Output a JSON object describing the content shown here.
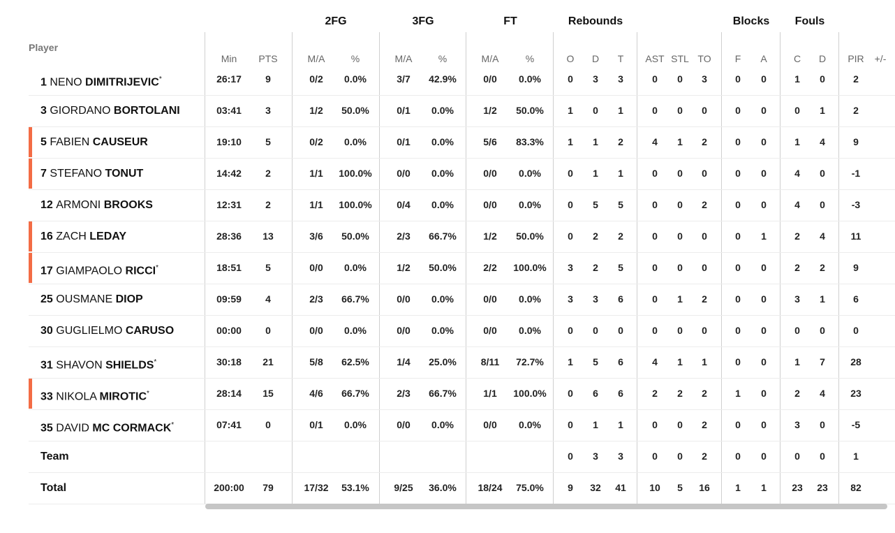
{
  "groups": [
    {
      "label": "2FG",
      "x": 481
    },
    {
      "label": "3FG",
      "x": 606
    },
    {
      "label": "FT",
      "x": 731
    },
    {
      "label": "Rebounds",
      "x": 853
    },
    {
      "label": "Blocks",
      "x": 1076
    },
    {
      "label": "Fouls",
      "x": 1160
    }
  ],
  "player_header": "Player",
  "columns": [
    {
      "key": "min",
      "label": "Min"
    },
    {
      "key": "pts",
      "label": "PTS"
    },
    {
      "key": "fg2",
      "label": "M/A"
    },
    {
      "key": "fg2p",
      "label": "%"
    },
    {
      "key": "fg3",
      "label": "M/A"
    },
    {
      "key": "fg3p",
      "label": "%"
    },
    {
      "key": "ft",
      "label": "M/A"
    },
    {
      "key": "ftp",
      "label": "%"
    },
    {
      "key": "o",
      "label": "O"
    },
    {
      "key": "d",
      "label": "D"
    },
    {
      "key": "t",
      "label": "T"
    },
    {
      "key": "ast",
      "label": "AST"
    },
    {
      "key": "stl",
      "label": "STL"
    },
    {
      "key": "to",
      "label": "TO"
    },
    {
      "key": "bf",
      "label": "F"
    },
    {
      "key": "ba",
      "label": "A"
    },
    {
      "key": "fc",
      "label": "C"
    },
    {
      "key": "fd",
      "label": "D"
    },
    {
      "key": "pir",
      "label": "PIR"
    },
    {
      "key": "pm",
      "label": "+/-"
    }
  ],
  "rows": [
    {
      "num": "1",
      "first": "NENO",
      "last": "DIMITRIJEVIC",
      "star": "*",
      "bar": false,
      "stats": [
        "26:17",
        "9",
        "0/2",
        "0.0%",
        "3/7",
        "42.9%",
        "0/0",
        "0.0%",
        "0",
        "3",
        "3",
        "0",
        "0",
        "3",
        "0",
        "0",
        "1",
        "0",
        "2",
        ""
      ]
    },
    {
      "num": "3",
      "first": "GIORDANO",
      "last": "BORTOLANI",
      "star": "",
      "bar": false,
      "stats": [
        "03:41",
        "3",
        "1/2",
        "50.0%",
        "0/1",
        "0.0%",
        "1/2",
        "50.0%",
        "1",
        "0",
        "1",
        "0",
        "0",
        "0",
        "0",
        "0",
        "0",
        "1",
        "2",
        ""
      ]
    },
    {
      "num": "5",
      "first": "FABIEN",
      "last": "CAUSEUR",
      "star": "",
      "bar": true,
      "stats": [
        "19:10",
        "5",
        "0/2",
        "0.0%",
        "0/1",
        "0.0%",
        "5/6",
        "83.3%",
        "1",
        "1",
        "2",
        "4",
        "1",
        "2",
        "0",
        "0",
        "1",
        "4",
        "9",
        ""
      ]
    },
    {
      "num": "7",
      "first": "STEFANO",
      "last": "TONUT",
      "star": "",
      "bar": true,
      "stats": [
        "14:42",
        "2",
        "1/1",
        "100.0%",
        "0/0",
        "0.0%",
        "0/0",
        "0.0%",
        "0",
        "1",
        "1",
        "0",
        "0",
        "0",
        "0",
        "0",
        "4",
        "0",
        "-1",
        ""
      ]
    },
    {
      "num": "12",
      "first": "ARMONI",
      "last": "BROOKS",
      "star": "",
      "bar": false,
      "stats": [
        "12:31",
        "2",
        "1/1",
        "100.0%",
        "0/4",
        "0.0%",
        "0/0",
        "0.0%",
        "0",
        "5",
        "5",
        "0",
        "0",
        "2",
        "0",
        "0",
        "4",
        "0",
        "-3",
        ""
      ]
    },
    {
      "num": "16",
      "first": "ZACH",
      "last": "LEDAY",
      "star": "",
      "bar": true,
      "stats": [
        "28:36",
        "13",
        "3/6",
        "50.0%",
        "2/3",
        "66.7%",
        "1/2",
        "50.0%",
        "0",
        "2",
        "2",
        "0",
        "0",
        "0",
        "0",
        "1",
        "2",
        "4",
        "11",
        ""
      ]
    },
    {
      "num": "17",
      "first": "GIAMPAOLO",
      "last": "RICCI",
      "star": "*",
      "bar": true,
      "stats": [
        "18:51",
        "5",
        "0/0",
        "0.0%",
        "1/2",
        "50.0%",
        "2/2",
        "100.0%",
        "3",
        "2",
        "5",
        "0",
        "0",
        "0",
        "0",
        "0",
        "2",
        "2",
        "9",
        ""
      ]
    },
    {
      "num": "25",
      "first": "OUSMANE",
      "last": "DIOP",
      "star": "",
      "bar": false,
      "stats": [
        "09:59",
        "4",
        "2/3",
        "66.7%",
        "0/0",
        "0.0%",
        "0/0",
        "0.0%",
        "3",
        "3",
        "6",
        "0",
        "1",
        "2",
        "0",
        "0",
        "3",
        "1",
        "6",
        ""
      ]
    },
    {
      "num": "30",
      "first": "GUGLIELMO",
      "last": "CARUSO",
      "star": "",
      "bar": false,
      "stats": [
        "00:00",
        "0",
        "0/0",
        "0.0%",
        "0/0",
        "0.0%",
        "0/0",
        "0.0%",
        "0",
        "0",
        "0",
        "0",
        "0",
        "0",
        "0",
        "0",
        "0",
        "0",
        "0",
        ""
      ]
    },
    {
      "num": "31",
      "first": "SHAVON",
      "last": "SHIELDS",
      "star": "*",
      "bar": false,
      "stats": [
        "30:18",
        "21",
        "5/8",
        "62.5%",
        "1/4",
        "25.0%",
        "8/11",
        "72.7%",
        "1",
        "5",
        "6",
        "4",
        "1",
        "1",
        "0",
        "0",
        "1",
        "7",
        "28",
        ""
      ]
    },
    {
      "num": "33",
      "first": "NIKOLA",
      "last": "MIROTIC",
      "star": "*",
      "bar": true,
      "stats": [
        "28:14",
        "15",
        "4/6",
        "66.7%",
        "2/3",
        "66.7%",
        "1/1",
        "100.0%",
        "0",
        "6",
        "6",
        "2",
        "2",
        "2",
        "1",
        "0",
        "2",
        "4",
        "23",
        ""
      ]
    },
    {
      "num": "35",
      "first": "DAVID",
      "last": "MC CORMACK",
      "star": "*",
      "bar": false,
      "stats": [
        "07:41",
        "0",
        "0/1",
        "0.0%",
        "0/0",
        "0.0%",
        "0/0",
        "0.0%",
        "0",
        "1",
        "1",
        "0",
        "0",
        "2",
        "0",
        "0",
        "3",
        "0",
        "-5",
        ""
      ]
    }
  ],
  "team": {
    "label": "Team",
    "stats": [
      "",
      "",
      "",
      "",
      "",
      "",
      "",
      "",
      "0",
      "3",
      "3",
      "0",
      "0",
      "2",
      "0",
      "0",
      "0",
      "0",
      "1",
      ""
    ]
  },
  "total": {
    "label": "Total",
    "stats": [
      "200:00",
      "79",
      "17/32",
      "53.1%",
      "9/25",
      "36.0%",
      "18/24",
      "75.0%",
      "9",
      "32",
      "41",
      "10",
      "5",
      "16",
      "1",
      "1",
      "23",
      "23",
      "82",
      ""
    ]
  },
  "accent_color": "#f36c45"
}
